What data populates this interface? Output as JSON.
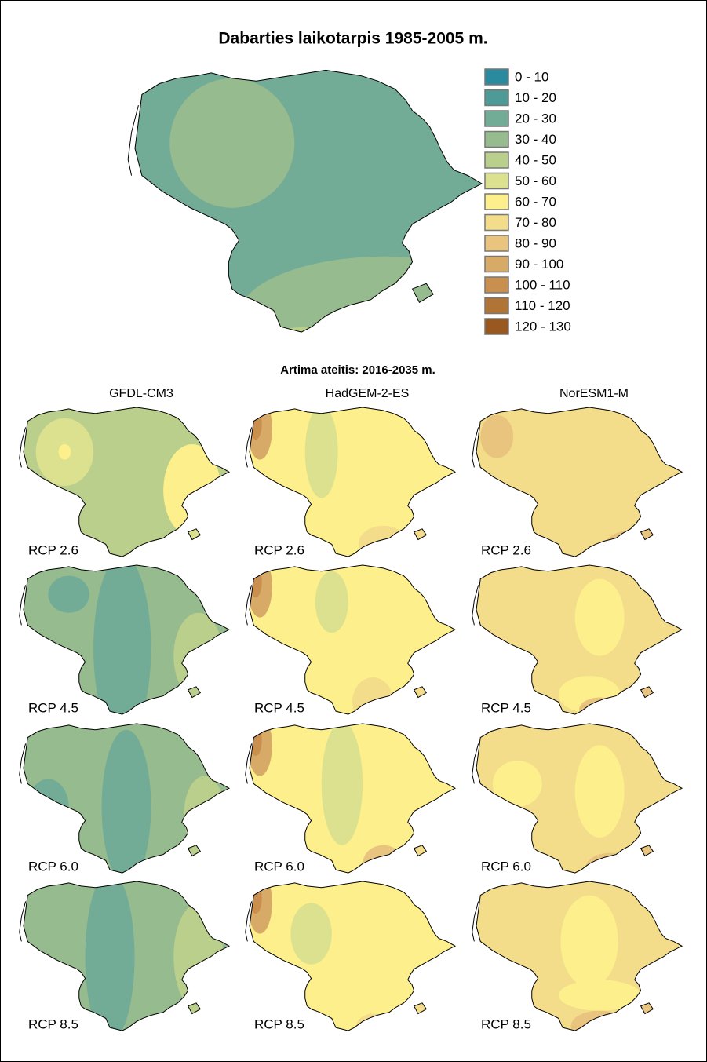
{
  "title": "Dabarties laikotarpis 1985-2005 m.",
  "legend": [
    {
      "label": "0 - 10",
      "color": "#2a8a9e"
    },
    {
      "label": "10 - 20",
      "color": "#4e9a96"
    },
    {
      "label": "20 - 30",
      "color": "#72ab96"
    },
    {
      "label": "30 - 40",
      "color": "#96bb8e"
    },
    {
      "label": "40 - 50",
      "color": "#b9cf8b"
    },
    {
      "label": "50 - 60",
      "color": "#dbe18e"
    },
    {
      "label": "60 - 70",
      "color": "#fdf08c"
    },
    {
      "label": "70 - 80",
      "color": "#f3dc8a"
    },
    {
      "label": "80 - 90",
      "color": "#e8c47e"
    },
    {
      "label": "90 - 100",
      "color": "#d8aa67"
    },
    {
      "label": "100 - 110",
      "color": "#c98f4e"
    },
    {
      "label": "110 - 120",
      "color": "#b07437"
    },
    {
      "label": "120 - 130",
      "color": "#99581f"
    }
  ],
  "subtitle": "Artima ateitis: 2016-2035 m.",
  "models": [
    "GFDL-CM3",
    "HadGEM-2-ES",
    "NorESM1-M"
  ],
  "scenarios": [
    "RCP 2.6",
    "RCP 4.5",
    "RCP 6.0",
    "RCP 8.5"
  ]
}
